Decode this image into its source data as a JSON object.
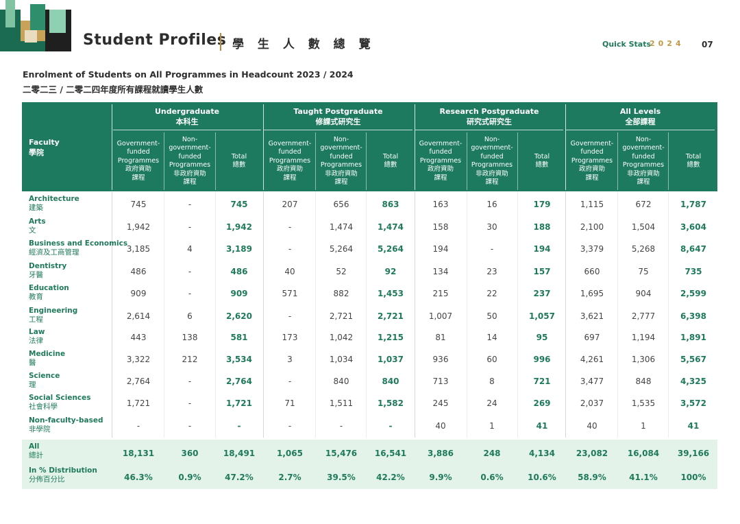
{
  "brand": {
    "logo_text": "HKU"
  },
  "header": {
    "title": "Student Profiles",
    "title_zh": "學 生 人 數 總 覽",
    "quick_stats": "Quick Stats",
    "year": "2024",
    "page": "07"
  },
  "subtitle": {
    "en": "Enrolment of Students on All Programmes in Headcount 2023 / 2024",
    "zh": "二零二三 / 二零二四年度所有課程就讀學生人數"
  },
  "table": {
    "faculty_header": {
      "en": "Faculty",
      "zh": "學院"
    },
    "groups": [
      {
        "en": "Undergraduate",
        "zh": "本科生"
      },
      {
        "en": "Taught Postgraduate",
        "zh": "修課式研究生"
      },
      {
        "en": "Research Postgraduate",
        "zh": "研究式研究生"
      },
      {
        "en": "All Levels",
        "zh": "全部課程"
      }
    ],
    "subcols": [
      {
        "en1": "Government-",
        "en2": "funded",
        "en3": "Programmes",
        "zh1": "政府資助",
        "zh2": "課程"
      },
      {
        "en1": "Non-",
        "en2": "government-",
        "en3": "funded",
        "en4": "Programmes",
        "zh1": "非政府資助",
        "zh2": "課程"
      },
      {
        "en1": "Total",
        "zh1": "總數"
      }
    ],
    "rows": [
      {
        "en": "Architecture",
        "zh": "建築",
        "v": [
          "745",
          "-",
          "745",
          "207",
          "656",
          "863",
          "163",
          "16",
          "179",
          "1,115",
          "672",
          "1,787"
        ]
      },
      {
        "en": "Arts",
        "zh": "文",
        "v": [
          "1,942",
          "-",
          "1,942",
          "-",
          "1,474",
          "1,474",
          "158",
          "30",
          "188",
          "2,100",
          "1,504",
          "3,604"
        ]
      },
      {
        "en": "Business and Economics",
        "zh": "經濟及工商管理",
        "v": [
          "3,185",
          "4",
          "3,189",
          "-",
          "5,264",
          "5,264",
          "194",
          "-",
          "194",
          "3,379",
          "5,268",
          "8,647"
        ]
      },
      {
        "en": "Dentistry",
        "zh": "牙醫",
        "v": [
          "486",
          "-",
          "486",
          "40",
          "52",
          "92",
          "134",
          "23",
          "157",
          "660",
          "75",
          "735"
        ]
      },
      {
        "en": "Education",
        "zh": "教育",
        "v": [
          "909",
          "-",
          "909",
          "571",
          "882",
          "1,453",
          "215",
          "22",
          "237",
          "1,695",
          "904",
          "2,599"
        ]
      },
      {
        "en": "Engineering",
        "zh": "工程",
        "v": [
          "2,614",
          "6",
          "2,620",
          "-",
          "2,721",
          "2,721",
          "1,007",
          "50",
          "1,057",
          "3,621",
          "2,777",
          "6,398"
        ]
      },
      {
        "en": "Law",
        "zh": "法律",
        "v": [
          "443",
          "138",
          "581",
          "173",
          "1,042",
          "1,215",
          "81",
          "14",
          "95",
          "697",
          "1,194",
          "1,891"
        ]
      },
      {
        "en": "Medicine",
        "zh": "醫",
        "v": [
          "3,322",
          "212",
          "3,534",
          "3",
          "1,034",
          "1,037",
          "936",
          "60",
          "996",
          "4,261",
          "1,306",
          "5,567"
        ]
      },
      {
        "en": "Science",
        "zh": "理",
        "v": [
          "2,764",
          "-",
          "2,764",
          "-",
          "840",
          "840",
          "713",
          "8",
          "721",
          "3,477",
          "848",
          "4,325"
        ]
      },
      {
        "en": "Social Sciences",
        "zh": "社會科學",
        "v": [
          "1,721",
          "-",
          "1,721",
          "71",
          "1,511",
          "1,582",
          "245",
          "24",
          "269",
          "2,037",
          "1,535",
          "3,572"
        ]
      },
      {
        "en": "Non-faculty-based",
        "zh": "非學院",
        "v": [
          "-",
          "-",
          "-",
          "-",
          "-",
          "-",
          "40",
          "1",
          "41",
          "40",
          "1",
          "41"
        ]
      }
    ],
    "totals": [
      {
        "en": "All",
        "zh": "總計",
        "v": [
          "18,131",
          "360",
          "18,491",
          "1,065",
          "15,476",
          "16,541",
          "3,886",
          "248",
          "4,134",
          "23,082",
          "16,084",
          "39,166"
        ]
      },
      {
        "en": "In % Distribution",
        "zh": "分佈百分比",
        "v": [
          "46.3%",
          "0.9%",
          "47.2%",
          "2.7%",
          "39.5%",
          "42.2%",
          "9.9%",
          "0.6%",
          "10.6%",
          "58.9%",
          "41.1%",
          "100%"
        ]
      }
    ]
  }
}
